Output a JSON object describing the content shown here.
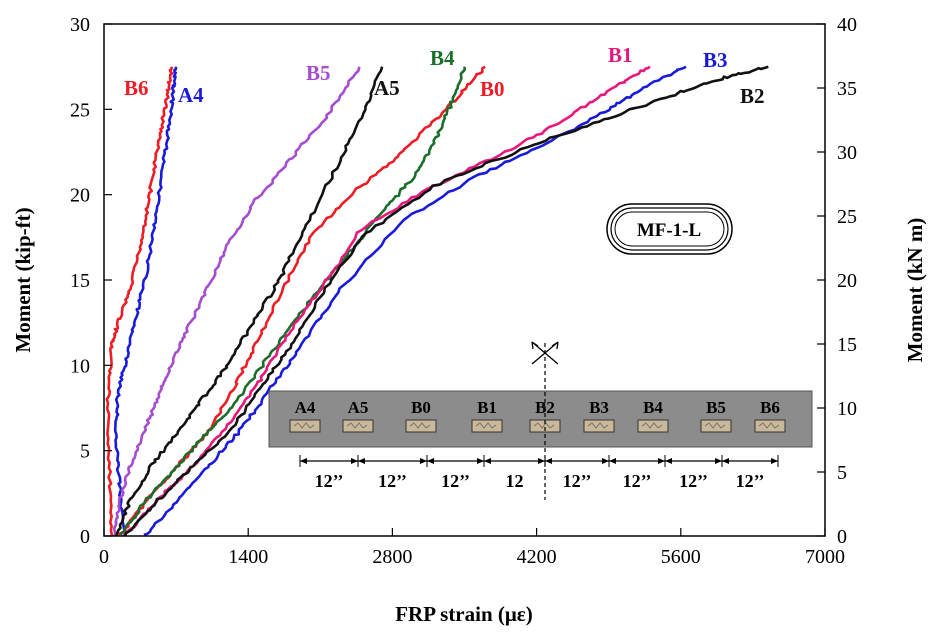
{
  "chart_data": {
    "type": "line",
    "xlabel": "FRP strain (με)",
    "ylabel": "Moment (kip-ft)",
    "y2label": "Moment (kN m)",
    "xlim": [
      0,
      7000
    ],
    "ylim": [
      0,
      30
    ],
    "y2lim": [
      0,
      40
    ],
    "x_ticks": [
      "0",
      "1400",
      "2800",
      "4200",
      "5600",
      "7000"
    ],
    "y_ticks": [
      "0",
      "5",
      "10",
      "15",
      "20",
      "25",
      "30"
    ],
    "y2_ticks": [
      "0",
      "5",
      "10",
      "15",
      "20",
      "25",
      "30",
      "35",
      "40"
    ],
    "grid": false,
    "badge": "MF-1-L",
    "series": [
      {
        "name": "B6",
        "color": "#ee1c25",
        "label_color": "#ee1c25",
        "x": [
          80,
          50,
          40,
          70,
          140,
          260,
          350,
          430,
          500,
          560,
          620,
          660
        ],
        "y": [
          0,
          4,
          8,
          11,
          12.5,
          14.5,
          17,
          19.5,
          22,
          24,
          26,
          27.5
        ]
      },
      {
        "name": "A4",
        "color": "#1a1adb",
        "label_color": "#1a1adb",
        "x": [
          200,
          150,
          120,
          130,
          200,
          300,
          400,
          480,
          560,
          620,
          670,
          700
        ],
        "y": [
          0,
          3,
          6,
          8,
          10,
          12.5,
          15,
          18,
          21,
          23.5,
          26,
          27.5
        ]
      },
      {
        "name": "B5",
        "color": "#a64ccf",
        "label_color": "#a64ccf",
        "x": [
          100,
          150,
          250,
          380,
          520,
          650,
          800,
          1000,
          1200,
          1450,
          1800,
          2150,
          2480
        ],
        "y": [
          0,
          2,
          4,
          6,
          8,
          10,
          12,
          14.5,
          17,
          19.5,
          22,
          24.5,
          27.5
        ]
      },
      {
        "name": "A5",
        "color": "#111111",
        "label_color": "#111111",
        "x": [
          120,
          250,
          450,
          700,
          950,
          1200,
          1450,
          1700,
          1950,
          2250,
          2500,
          2700
        ],
        "y": [
          0,
          2,
          4,
          6,
          8,
          10,
          12.5,
          15,
          18,
          21.5,
          24.5,
          27.5
        ]
      },
      {
        "name": "B0",
        "color": "#ee1c25",
        "label_color": "#ee1c25",
        "x": [
          150,
          400,
          700,
          1000,
          1250,
          1450,
          1700,
          2000,
          2400,
          2800,
          3150,
          3450,
          3700
        ],
        "y": [
          0,
          2,
          4,
          6,
          8.5,
          11,
          14,
          17.5,
          20,
          22,
          24,
          25.8,
          27.5
        ]
      },
      {
        "name": "B4",
        "color": "#1b6e2a",
        "label_color": "#1b6e2a",
        "x": [
          150,
          400,
          700,
          1000,
          1300,
          1600,
          1900,
          2300,
          2700,
          3000,
          3200,
          3350,
          3500
        ],
        "y": [
          0,
          2,
          4,
          6,
          8,
          10.5,
          13,
          16,
          19,
          21,
          23,
          25,
          27.5
        ]
      },
      {
        "name": "B1",
        "color": "#e8177c",
        "label_color": "#e8177c",
        "x": [
          200,
          500,
          850,
          1200,
          1500,
          1750,
          2050,
          2500,
          3200,
          3900,
          4500,
          5000,
          5300
        ],
        "y": [
          0,
          2,
          4,
          6.5,
          9,
          11.5,
          14,
          18,
          20.5,
          22.5,
          24.5,
          26.5,
          27.5
        ]
      },
      {
        "name": "B3",
        "color": "#1a1adb",
        "label_color": "#1a1adb",
        "x": [
          400,
          700,
          1000,
          1300,
          1600,
          1900,
          2300,
          2900,
          3600,
          4300,
          4900,
          5300,
          5650
        ],
        "y": [
          0,
          2,
          4,
          6,
          8.5,
          11,
          14.5,
          18.5,
          21,
          23,
          25,
          26.5,
          27.5
        ]
      },
      {
        "name": "B2",
        "color": "#111111",
        "label_color": "#111111",
        "x": [
          200,
          500,
          850,
          1200,
          1500,
          1800,
          2100,
          2500,
          3200,
          4000,
          4800,
          5500,
          6000,
          6450
        ],
        "y": [
          0,
          2,
          4,
          6,
          8.5,
          11,
          14,
          17.5,
          20.5,
          22.5,
          24.3,
          25.8,
          26.8,
          27.5
        ]
      }
    ],
    "inset": {
      "gauges": [
        "A4",
        "A5",
        "B0",
        "B1",
        "B2",
        "B3",
        "B4",
        "B5",
        "B6"
      ],
      "spacing_labels": [
        "12’’",
        "12’’",
        "12’’",
        "12",
        "12’’",
        "12’’",
        "12’’",
        "12’’"
      ]
    }
  }
}
